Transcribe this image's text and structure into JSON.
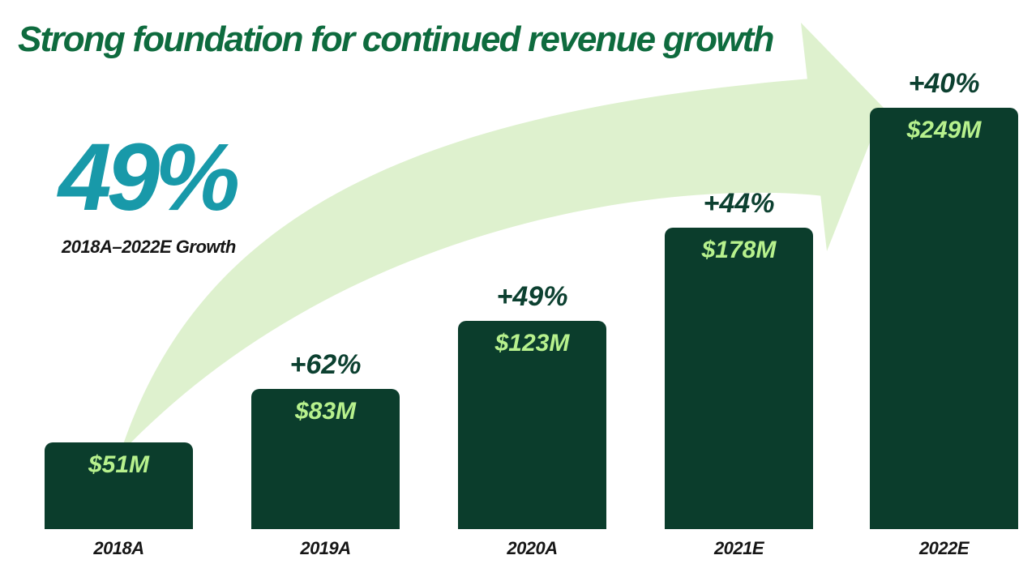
{
  "title": "Strong foundation for continued revenue growth",
  "highlight": {
    "value": "49%",
    "caption": "2018A–2022E Growth"
  },
  "colors": {
    "background": "#FFFFFF",
    "title_green": "#0E6B3E",
    "bar_green": "#0B3D2C",
    "value_text_green": "#B7F18D",
    "growth_label_green": "#0C4030",
    "arrow_light_green": "#DEF1CE",
    "highlight_teal": "#1899A9",
    "axis_text": "#161616"
  },
  "chart_data": {
    "type": "bar",
    "title": "Strong foundation for continued revenue growth",
    "categories": [
      "2018A",
      "2019A",
      "2020A",
      "2021E",
      "2022E"
    ],
    "values": [
      51,
      83,
      123,
      178,
      249
    ],
    "value_labels": [
      "$51M",
      "$83M",
      "$123M",
      "$178M",
      "$249M"
    ],
    "growth_labels": [
      null,
      "+62%",
      "+49%",
      "+44%",
      "+40%"
    ],
    "units": "USD millions",
    "ylim": [
      0,
      260
    ],
    "grid": false,
    "legend": false,
    "annotation": "49% 2018A–2022E Growth"
  }
}
